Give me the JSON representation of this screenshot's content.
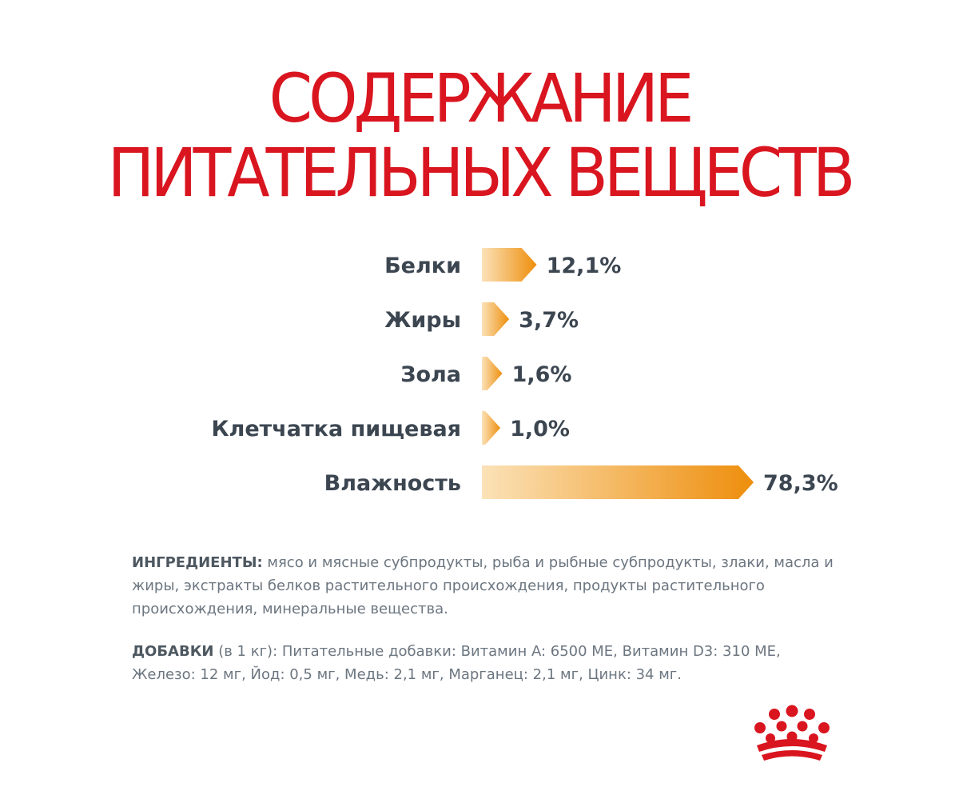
{
  "title_line1": "СОДЕРЖАНИЕ",
  "title_line2": "ПИТАТЕЛЬНЫХ ВЕЩЕСТВ",
  "chart_data": {
    "type": "bar",
    "orientation": "horizontal",
    "categories": [
      "Белки",
      "Жиры",
      "Зола",
      "Клетчатка пищевая",
      "Влажность"
    ],
    "values": [
      12.1,
      3.7,
      1.6,
      1.0,
      78.3
    ],
    "value_labels": [
      "12,1%",
      "3,7%",
      "1,6%",
      "1,0%",
      "78,3%"
    ],
    "unit": "%",
    "grid": false,
    "legend": "none",
    "colors": {
      "bar_start": "#fbe2b8",
      "bar_end": "#ee8e0c",
      "label": "#3c4651"
    }
  },
  "ingredients": {
    "heading": "ИНГРЕДИЕНТЫ:",
    "text": " мясо и мясные субпродукты, рыба и рыбные субпродукты, злаки, масла и жиры, экстракты белков растительного происхождения, продукты растительного происхождения, минеральные вещества."
  },
  "additives": {
    "heading": "ДОБАВКИ",
    "text": " (в 1 кг): Питательные добавки: Витамин A: 6500 МЕ, Витамин D3: 310 МЕ, Железо: 12 мг, Йод: 0,5 мг, Медь: 2,1 мг, Марганец: 2,1 мг, Цинк: 34 мг."
  },
  "logo": {
    "icon": "crown-icon",
    "color": "#d9151f"
  }
}
